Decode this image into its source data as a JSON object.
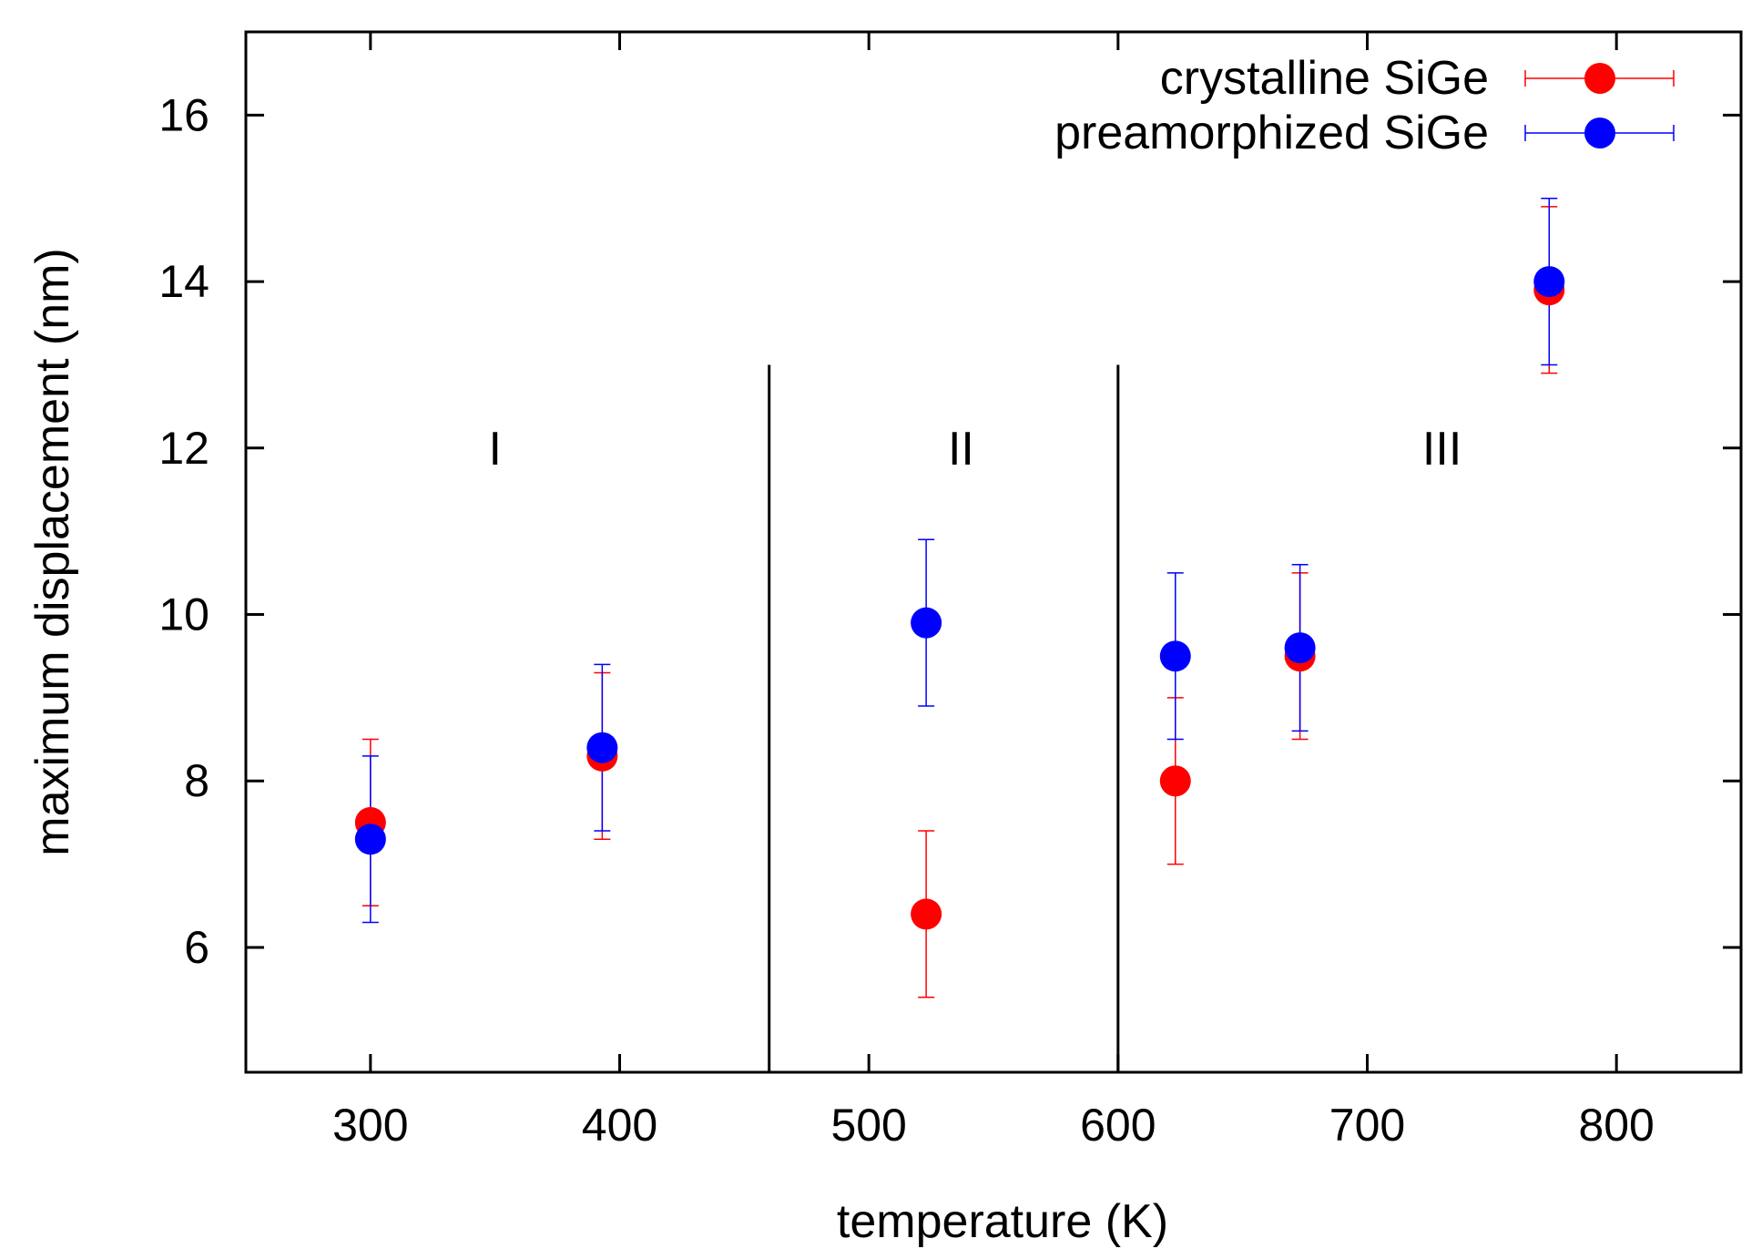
{
  "chart_data": {
    "type": "scatter",
    "title": "",
    "xlabel": "temperature (K)",
    "ylabel": "maximum displacement (nm)",
    "xlim": [
      250,
      850
    ],
    "ylim": [
      4.5,
      17
    ],
    "xticks": [
      300,
      400,
      500,
      600,
      700,
      800
    ],
    "yticks": [
      6,
      8,
      10,
      12,
      14,
      16
    ],
    "grid": false,
    "legend_position": "top-right",
    "region_dividers": [
      460,
      600
    ],
    "region_divider_top": 13,
    "regions": [
      {
        "label": "I",
        "x": 350,
        "y": 12
      },
      {
        "label": "II",
        "x": 537,
        "y": 12
      },
      {
        "label": "III",
        "x": 730,
        "y": 12
      }
    ],
    "series": [
      {
        "name": "crystalline SiGe",
        "color": "#ff0000",
        "points": [
          {
            "x": 300,
            "y": 7.5,
            "err": 1.0
          },
          {
            "x": 393,
            "y": 8.3,
            "err": 1.0
          },
          {
            "x": 523,
            "y": 6.4,
            "err": 1.0
          },
          {
            "x": 623,
            "y": 8.0,
            "err": 1.0
          },
          {
            "x": 673,
            "y": 9.5,
            "err": 1.0
          },
          {
            "x": 773,
            "y": 13.9,
            "err": 1.0
          }
        ]
      },
      {
        "name": "preamorphized SiGe",
        "color": "#0000ff",
        "points": [
          {
            "x": 300,
            "y": 7.3,
            "err": 1.0
          },
          {
            "x": 393,
            "y": 8.4,
            "err": 1.0
          },
          {
            "x": 523,
            "y": 9.9,
            "err": 1.0
          },
          {
            "x": 623,
            "y": 9.5,
            "err": 1.0
          },
          {
            "x": 673,
            "y": 9.6,
            "err": 1.0
          },
          {
            "x": 773,
            "y": 14.0,
            "err": 1.0
          }
        ]
      }
    ]
  }
}
